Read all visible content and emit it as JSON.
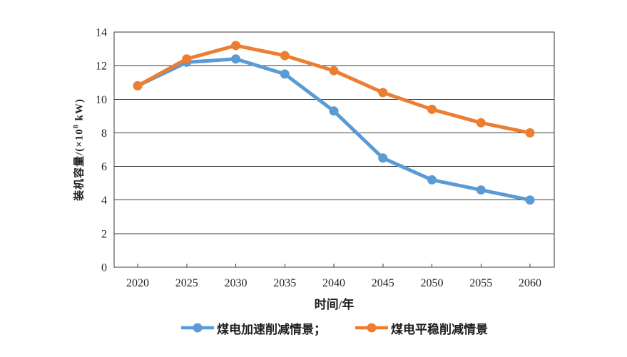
{
  "figure": {
    "background": "#ffffff",
    "text_color": "#1f1f1f",
    "axis_color": "#3a3a3a"
  },
  "chart_data": {
    "type": "line",
    "title": "",
    "xlabel": "时间/年",
    "ylabel": "装机容量/(×10⁸ kW)",
    "ylabel_parts": {
      "prefix": "装机容量/(×10",
      "sup": "8",
      "suffix": " kW)"
    },
    "categories": [
      "2020",
      "2025",
      "2030",
      "2035",
      "2040",
      "2045",
      "2050",
      "2055",
      "2060"
    ],
    "ylim": [
      0,
      14
    ],
    "yticks": [
      0,
      2,
      4,
      6,
      8,
      10,
      12,
      14
    ],
    "grid": "horizontal",
    "legend_position": "bottom",
    "series": [
      {
        "name": "煤电加速削减情景",
        "legend_label": "煤电加速削减情景；",
        "color": "#5B9BD5",
        "marker": "circle",
        "values": [
          10.8,
          12.2,
          12.4,
          11.5,
          9.3,
          6.5,
          5.2,
          4.6,
          4.0
        ]
      },
      {
        "name": "煤电平稳削减情景",
        "legend_label": "煤电平稳削减情景",
        "color": "#ED7D31",
        "marker": "circle",
        "values": [
          10.8,
          12.4,
          13.2,
          12.6,
          11.7,
          10.4,
          9.4,
          8.6,
          8.0
        ]
      }
    ]
  }
}
